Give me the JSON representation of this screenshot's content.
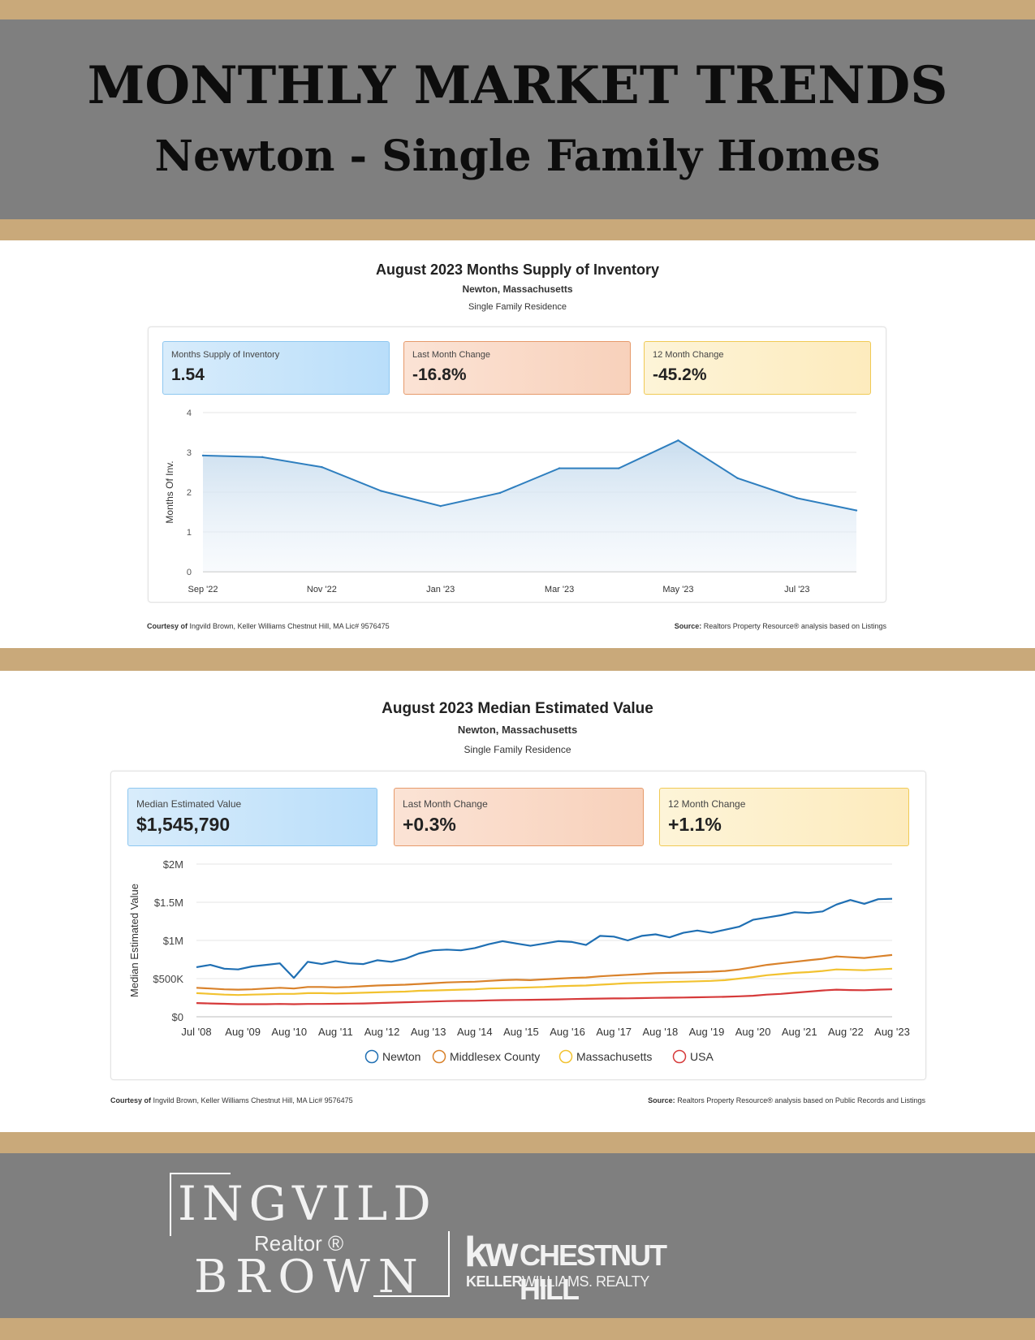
{
  "header": {
    "title": "MONTHLY MARKET TRENDS",
    "subtitle": "Newton - Single Family Homes"
  },
  "colors": {
    "gold": "#c9a97a",
    "gray": "#7f7f7f",
    "newton": "#1f6fb3",
    "middlesex": "#d9822b",
    "massachusetts": "#f2c230",
    "usa": "#d63a3a"
  },
  "inventory": {
    "title": "August 2023 Months Supply of Inventory",
    "location": "Newton, Massachusetts",
    "property_type": "Single Family Residence",
    "stats": [
      {
        "label": "Months Supply of Inventory",
        "value": "1.54"
      },
      {
        "label": "Last Month Change",
        "value": "-16.8%"
      },
      {
        "label": "12 Month Change",
        "value": "-45.2%"
      }
    ],
    "courtesy_label": "Courtesy of",
    "courtesy_text": "Ingvild Brown, Keller Williams Chestnut Hill, MA Lic# 9576475",
    "source_label": "Source:",
    "source_text": "Realtors Property Resource® analysis based on Listings"
  },
  "median": {
    "title": "August 2023 Median Estimated Value",
    "location": "Newton, Massachusetts",
    "property_type": "Single Family Residence",
    "stats": [
      {
        "label": "Median Estimated Value",
        "value": "$1,545,790"
      },
      {
        "label": "Last Month Change",
        "value": "+0.3%"
      },
      {
        "label": "12 Month Change",
        "value": "+1.1%"
      }
    ],
    "courtesy_label": "Courtesy of",
    "courtesy_text": "Ingvild Brown, Keller Williams Chestnut Hill, MA Lic# 9576475",
    "source_label": "Source:",
    "source_text": "Realtors Property Resource® analysis based on Public Records and Listings"
  },
  "chart_data": [
    {
      "type": "area",
      "ylabel": "Months Of Inv.",
      "ylim": [
        0,
        4
      ],
      "yticks": [
        "0",
        "1",
        "2",
        "3",
        "4"
      ],
      "x": [
        "Sep '22",
        "Oct '22",
        "Nov '22",
        "Dec '22",
        "Jan '23",
        "Feb '23",
        "Mar '23",
        "Apr '23",
        "May '23",
        "Jun '23",
        "Jul '23",
        "Aug '23"
      ],
      "xtick_labels": [
        "Sep '22",
        "Nov '22",
        "Jan '23",
        "Mar '23",
        "May '23",
        "Jul '23"
      ],
      "values": [
        2.92,
        2.88,
        2.63,
        2.03,
        1.65,
        1.98,
        2.6,
        2.6,
        3.3,
        2.35,
        1.85,
        1.54
      ],
      "grid": true
    },
    {
      "type": "line",
      "ylabel": "Median Estimated Value",
      "ylim": [
        0,
        2000000
      ],
      "yticks": [
        "$0",
        "$500K",
        "$1M",
        "$1.5M",
        "$2M"
      ],
      "x_start": "Jul '08",
      "x_end": "Aug '23",
      "xtick_labels": [
        "Jul '08",
        "Aug '09",
        "Aug '10",
        "Aug '11",
        "Aug '12",
        "Aug '13",
        "Aug '14",
        "Aug '15",
        "Aug '16",
        "Aug '17",
        "Aug '18",
        "Aug '19",
        "Aug '20",
        "Aug '21",
        "Aug '22",
        "Aug '23"
      ],
      "legend_position": "bottom",
      "grid": true,
      "series": [
        {
          "name": "Newton",
          "values": [
            650000,
            680000,
            630000,
            620000,
            660000,
            680000,
            700000,
            510000,
            720000,
            690000,
            730000,
            700000,
            690000,
            740000,
            720000,
            760000,
            830000,
            870000,
            880000,
            870000,
            900000,
            950000,
            990000,
            960000,
            930000,
            960000,
            990000,
            980000,
            940000,
            1060000,
            1050000,
            1000000,
            1060000,
            1080000,
            1040000,
            1100000,
            1130000,
            1100000,
            1140000,
            1180000,
            1270000,
            1300000,
            1330000,
            1370000,
            1360000,
            1380000,
            1470000,
            1530000,
            1480000,
            1540000,
            1545790
          ]
        },
        {
          "name": "Middlesex County",
          "values": [
            380000,
            370000,
            360000,
            355000,
            360000,
            370000,
            380000,
            370000,
            390000,
            390000,
            385000,
            390000,
            400000,
            410000,
            415000,
            420000,
            430000,
            440000,
            450000,
            455000,
            460000,
            470000,
            480000,
            485000,
            480000,
            490000,
            500000,
            510000,
            515000,
            530000,
            540000,
            550000,
            560000,
            570000,
            575000,
            580000,
            585000,
            590000,
            600000,
            620000,
            650000,
            680000,
            700000,
            720000,
            740000,
            760000,
            790000,
            780000,
            770000,
            790000,
            810000
          ]
        },
        {
          "name": "Massachusetts",
          "values": [
            310000,
            300000,
            290000,
            285000,
            290000,
            295000,
            300000,
            300000,
            310000,
            310000,
            305000,
            310000,
            315000,
            320000,
            325000,
            330000,
            340000,
            345000,
            350000,
            355000,
            360000,
            370000,
            375000,
            380000,
            385000,
            390000,
            400000,
            405000,
            410000,
            420000,
            430000,
            440000,
            445000,
            450000,
            455000,
            460000,
            465000,
            470000,
            480000,
            500000,
            520000,
            545000,
            560000,
            575000,
            585000,
            600000,
            620000,
            615000,
            610000,
            620000,
            630000
          ]
        },
        {
          "name": "USA",
          "values": [
            180000,
            175000,
            170000,
            165000,
            165000,
            165000,
            168000,
            165000,
            168000,
            168000,
            170000,
            172000,
            175000,
            180000,
            185000,
            190000,
            195000,
            200000,
            205000,
            208000,
            210000,
            215000,
            218000,
            220000,
            222000,
            225000,
            228000,
            232000,
            235000,
            238000,
            240000,
            242000,
            245000,
            248000,
            250000,
            252000,
            255000,
            258000,
            262000,
            268000,
            275000,
            290000,
            300000,
            315000,
            330000,
            345000,
            355000,
            350000,
            348000,
            355000,
            360000
          ]
        }
      ]
    }
  ],
  "branding": {
    "name_top": "INGVILD",
    "name_mid": "Realtor ®",
    "name_bottom": "BROWN",
    "kw": "kw",
    "office": "CHESTNUT HILL",
    "brokerage_a": "KELLER",
    "brokerage_b": "WILLIAMS. REALTY"
  }
}
